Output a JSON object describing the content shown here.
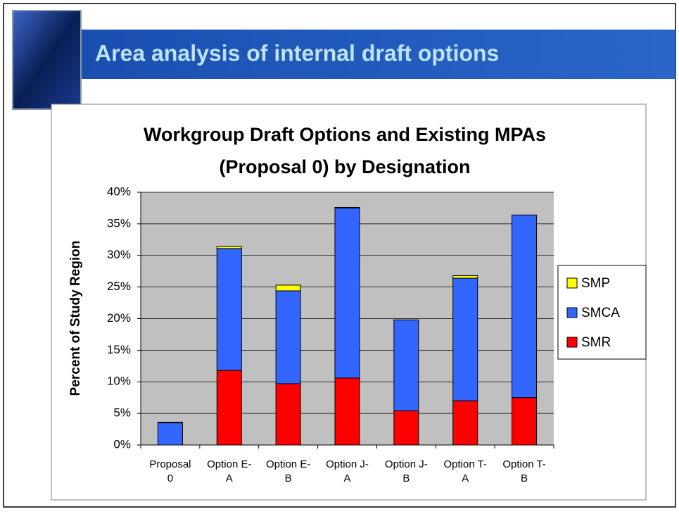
{
  "slide_title": "Area analysis of internal draft options",
  "chart_data": {
    "type": "stacked-bar",
    "title": "Workgroup Draft Options and Existing MPAs (Proposal 0) by Designation",
    "y_label": "Percent of Study Region",
    "categories": [
      "Proposal 0",
      "Option E-A",
      "Option E-B",
      "Option J-A",
      "Option J-B",
      "Option T-A",
      "Option T-B"
    ],
    "series": [
      {
        "name": "SMR",
        "color": "#ff0000",
        "values": [
          0,
          11.8,
          9.7,
          10.6,
          5.4,
          7.0,
          7.5
        ]
      },
      {
        "name": "SMCA",
        "color": "#3366ff",
        "values": [
          3.5,
          19.3,
          14.7,
          26.9,
          14.4,
          19.4,
          28.9
        ]
      },
      {
        "name": "SMP",
        "color": "#ffff00",
        "values": [
          0.1,
          0.3,
          0.9,
          0.1,
          0,
          0.4,
          0
        ]
      }
    ],
    "ylim": [
      0,
      40
    ],
    "yticks": [
      {
        "value": 0,
        "label": "0%"
      },
      {
        "value": 5,
        "label": "5%"
      },
      {
        "value": 10,
        "label": "10%"
      },
      {
        "value": 15,
        "label": "15%"
      },
      {
        "value": 20,
        "label": "20%"
      },
      {
        "value": 25,
        "label": "25%"
      },
      {
        "value": 30,
        "label": "30%"
      },
      {
        "value": 35,
        "label": "35%"
      },
      {
        "value": 40,
        "label": "40%"
      }
    ],
    "grid": true,
    "legend": "right"
  }
}
